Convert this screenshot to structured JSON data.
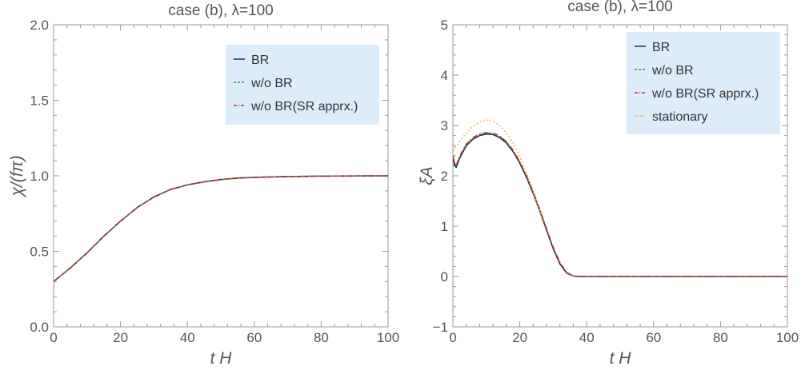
{
  "chart_data": [
    {
      "type": "line",
      "title": "case (b), λ=100",
      "xlabel": "t H",
      "ylabel": "χ/(fπ)",
      "xlim": [
        0,
        100
      ],
      "ylim": [
        0,
        2
      ],
      "x_ticks": [
        "0",
        "20",
        "40",
        "60",
        "80",
        "100"
      ],
      "y_ticks": [
        "0.0",
        "0.5",
        "1.0",
        "1.5",
        "2.0"
      ],
      "legend_position": "top-right",
      "x": [
        0,
        5,
        10,
        15,
        20,
        25,
        30,
        35,
        40,
        45,
        50,
        55,
        60,
        70,
        80,
        90,
        100
      ],
      "series": [
        {
          "name": "BR",
          "color": "#1a2a6c",
          "dash": "solid",
          "values": [
            0.3,
            0.39,
            0.49,
            0.6,
            0.7,
            0.79,
            0.86,
            0.91,
            0.94,
            0.96,
            0.975,
            0.985,
            0.99,
            0.995,
            0.998,
            0.999,
            1.0
          ]
        },
        {
          "name": "w/o BR",
          "color": "#2ca02c",
          "dash": "dashed",
          "values": [
            0.3,
            0.39,
            0.49,
            0.6,
            0.7,
            0.79,
            0.86,
            0.91,
            0.94,
            0.96,
            0.975,
            0.985,
            0.99,
            0.995,
            0.998,
            0.999,
            1.0
          ]
        },
        {
          "name": "w/o BR(SR apprx.)",
          "color": "#d62728",
          "dash": "dashdot",
          "values": [
            0.3,
            0.39,
            0.49,
            0.6,
            0.7,
            0.79,
            0.86,
            0.91,
            0.94,
            0.96,
            0.975,
            0.985,
            0.99,
            0.995,
            0.998,
            0.999,
            1.0
          ]
        }
      ]
    },
    {
      "type": "line",
      "title": "case (b), λ=100",
      "xlabel": "t H",
      "ylabel": "ξA",
      "xlim": [
        0,
        100
      ],
      "ylim": [
        -1,
        5
      ],
      "x_ticks": [
        "0",
        "20",
        "40",
        "60",
        "80",
        "100"
      ],
      "y_ticks": [
        "−1",
        "0",
        "1",
        "2",
        "3",
        "4",
        "5"
      ],
      "legend_position": "top-right",
      "series": [
        {
          "name": "BR",
          "color": "#1a2a6c",
          "dash": "solid",
          "x": [
            0,
            0.5,
            1,
            2,
            4,
            6,
            8,
            10,
            12,
            14,
            16,
            18,
            20,
            22,
            24,
            26,
            28,
            30,
            32,
            34,
            36,
            38,
            40,
            45,
            50,
            60,
            70,
            80,
            90,
            100
          ],
          "values": [
            2.4,
            2.2,
            2.17,
            2.35,
            2.6,
            2.73,
            2.8,
            2.83,
            2.82,
            2.76,
            2.65,
            2.48,
            2.25,
            1.97,
            1.65,
            1.3,
            0.92,
            0.55,
            0.25,
            0.07,
            0.01,
            0.0,
            0.0,
            0.0,
            0.0,
            0.0,
            0.0,
            0.0,
            0.0,
            0.0
          ]
        },
        {
          "name": "w/o BR",
          "color": "#2ca02c",
          "dash": "dashed",
          "x": [
            0,
            0.5,
            1,
            2,
            4,
            6,
            8,
            10,
            12,
            14,
            16,
            18,
            20,
            22,
            24,
            26,
            28,
            30,
            32,
            34,
            36,
            38,
            40,
            45,
            50,
            60,
            70,
            80,
            90,
            100
          ],
          "values": [
            2.4,
            2.25,
            2.2,
            2.38,
            2.62,
            2.75,
            2.82,
            2.85,
            2.84,
            2.78,
            2.67,
            2.5,
            2.27,
            1.99,
            1.67,
            1.32,
            0.94,
            0.57,
            0.27,
            0.08,
            0.01,
            0.0,
            0.0,
            0.0,
            0.0,
            0.0,
            0.0,
            0.0,
            0.0,
            0.0
          ]
        },
        {
          "name": "w/o BR(SR apprx.)",
          "color": "#d62728",
          "dash": "dashdot",
          "x": [
            0,
            0.5,
            1,
            2,
            4,
            6,
            8,
            10,
            12,
            14,
            16,
            18,
            20,
            22,
            24,
            26,
            28,
            30,
            32,
            34,
            36,
            38,
            40,
            45,
            50,
            60,
            70,
            80,
            90,
            100
          ],
          "values": [
            2.4,
            2.26,
            2.21,
            2.39,
            2.63,
            2.76,
            2.83,
            2.86,
            2.85,
            2.79,
            2.68,
            2.51,
            2.28,
            2.0,
            1.68,
            1.33,
            0.95,
            0.58,
            0.28,
            0.08,
            0.01,
            0.0,
            0.0,
            0.0,
            0.0,
            0.0,
            0.0,
            0.0,
            0.0,
            0.0
          ]
        },
        {
          "name": "stationary",
          "color": "#ff9a1a",
          "dash": "dotted",
          "x": [
            0,
            2,
            4,
            6,
            8,
            10,
            12,
            14,
            16,
            18,
            20,
            22,
            24,
            26,
            27
          ],
          "values": [
            2.5,
            2.68,
            2.85,
            2.98,
            3.07,
            3.11,
            3.09,
            3.0,
            2.85,
            2.65,
            2.38,
            2.05,
            1.7,
            1.3,
            1.05
          ]
        }
      ]
    }
  ]
}
